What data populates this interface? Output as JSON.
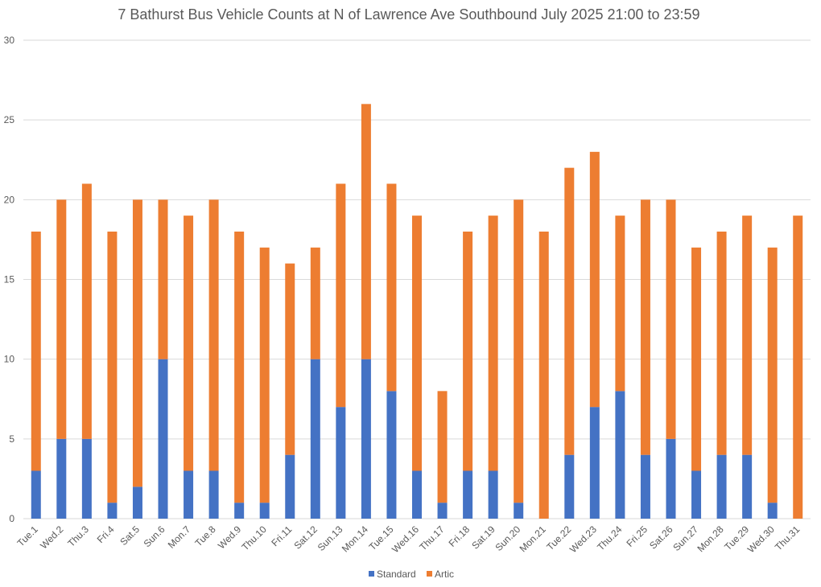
{
  "chart_data": {
    "type": "bar",
    "stacked": true,
    "title": "7 Bathurst Bus Vehicle Counts at N of Lawrence Ave Southbound July 2025  21:00 to 23:59",
    "xlabel": "",
    "ylabel": "",
    "ylim": [
      0,
      30
    ],
    "yticks": [
      0,
      5,
      10,
      15,
      20,
      25,
      30
    ],
    "grid": true,
    "legend_position": "bottom",
    "categories": [
      "Tue.1",
      "Wed.2",
      "Thu.3",
      "Fri.4",
      "Sat.5",
      "Sun.6",
      "Mon.7",
      "Tue.8",
      "Wed.9",
      "Thu.10",
      "Fri.11",
      "Sat.12",
      "Sun.13",
      "Mon.14",
      "Tue.15",
      "Wed.16",
      "Thu.17",
      "Fri.18",
      "Sat.19",
      "Sun.20",
      "Mon.21",
      "Tue.22",
      "Wed.23",
      "Thu.24",
      "Fri.25",
      "Sat.26",
      "Sun.27",
      "Mon.28",
      "Tue.29",
      "Wed.30",
      "Thu.31"
    ],
    "series": [
      {
        "name": "Standard",
        "color": "#4472c4",
        "values": [
          3,
          5,
          5,
          1,
          2,
          10,
          3,
          3,
          1,
          1,
          4,
          10,
          7,
          10,
          8,
          3,
          1,
          3,
          3,
          1,
          0,
          4,
          7,
          8,
          4,
          5,
          3,
          4,
          4,
          1,
          0
        ]
      },
      {
        "name": "Artic",
        "color": "#ed7d31",
        "values": [
          15,
          15,
          16,
          17,
          18,
          10,
          16,
          17,
          17,
          16,
          12,
          7,
          14,
          16,
          13,
          16,
          7,
          15,
          16,
          19,
          18,
          18,
          16,
          11,
          16,
          15,
          14,
          14,
          15,
          16,
          19
        ]
      }
    ]
  }
}
